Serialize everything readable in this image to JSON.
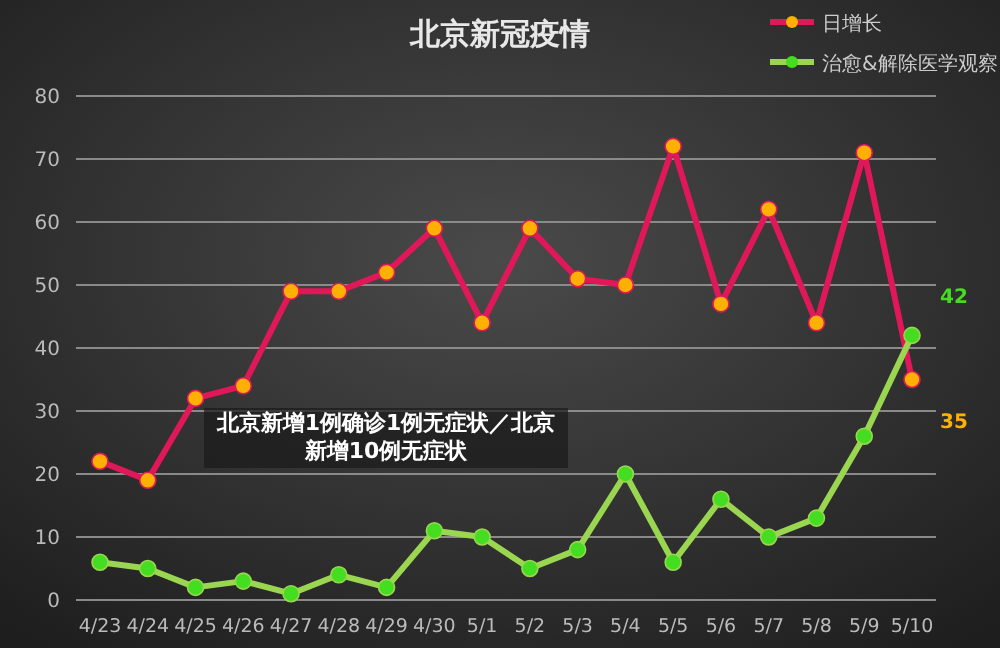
{
  "chart_data": {
    "type": "line",
    "title": "北京新冠疫情",
    "categories": [
      "4/23",
      "4/24",
      "4/25",
      "4/26",
      "4/27",
      "4/28",
      "4/29",
      "4/30",
      "5/1",
      "5/2",
      "5/3",
      "5/4",
      "5/5",
      "5/6",
      "5/7",
      "5/8",
      "5/9",
      "5/10"
    ],
    "series": [
      {
        "name": "日增长",
        "color": "#e0185a",
        "values": [
          22,
          19,
          32,
          34,
          49,
          49,
          52,
          59,
          44,
          59,
          51,
          50,
          72,
          47,
          62,
          44,
          71,
          35
        ],
        "value_labels": [
          null,
          null,
          null,
          null,
          null,
          null,
          null,
          null,
          null,
          null,
          null,
          null,
          null,
          null,
          null,
          null,
          null,
          "35"
        ]
      },
      {
        "name": "治愈&解除医学观察",
        "color": "#9ad650",
        "values": [
          6,
          5,
          2,
          3,
          1,
          4,
          2,
          11,
          10,
          5,
          8,
          20,
          6,
          16,
          10,
          13,
          26,
          42
        ],
        "value_labels": [
          null,
          null,
          null,
          null,
          null,
          null,
          null,
          null,
          null,
          null,
          null,
          null,
          null,
          null,
          null,
          null,
          null,
          "42"
        ]
      }
    ],
    "ylim": [
      0,
      80
    ],
    "yticks": [
      0,
      10,
      20,
      30,
      40,
      50,
      60,
      70,
      80
    ],
    "grid": "y",
    "legend": "top right",
    "marker": "circle",
    "line_style": "solid",
    "annotations": [
      "北京新增1例确诊1例无症状／北京新增10例无症状"
    ]
  }
}
